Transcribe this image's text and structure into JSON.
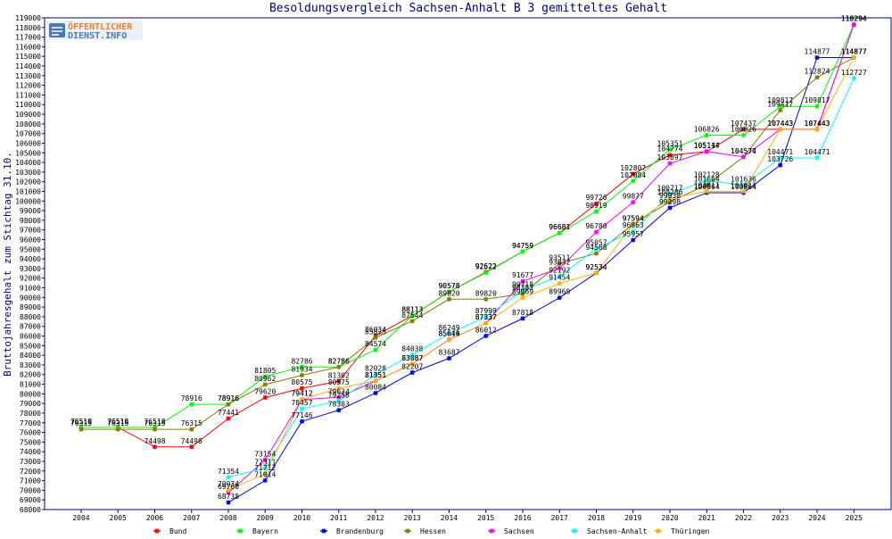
{
  "logo": {
    "line1": "ÖFFENTLICHER",
    "line2": "DIENST.INFO"
  },
  "chart_data": {
    "type": "line",
    "title": "Besoldungsvergleich Sachsen-Anhalt B 3 gemitteltes Gehalt",
    "xlabel": "",
    "ylabel": "Bruttojahresgehalt zum Stichtag 31.10.",
    "categories": [
      "2004",
      "2005",
      "2006",
      "2007",
      "2008",
      "2009",
      "2010",
      "2011",
      "2012",
      "2013",
      "2014",
      "2015",
      "2016",
      "2017",
      "2018",
      "2019",
      "2020",
      "2021",
      "2022",
      "2023",
      "2024",
      "2025"
    ],
    "ylim": [
      68000,
      119000
    ],
    "grid": false,
    "legend_position": "bottom",
    "series": [
      {
        "name": "Bund",
        "color": "#ff0000",
        "values": [
          76518,
          76518,
          74498,
          74498,
          77441,
          79620,
          80575,
          81302,
          86034,
          88113,
          90578,
          92622,
          94759,
          96681,
          99726,
          102807,
          104774,
          105117,
          107437,
          107443,
          107443,
          118294
        ]
      },
      {
        "name": "Bayern",
        "color": "#00ff00",
        "values": [
          76518,
          76518,
          76518,
          78916,
          78916,
          81805,
          82786,
          82786,
          84574,
          88113,
          90578,
          92572,
          94759,
          96681,
          98919,
          102084,
          105351,
          106826,
          106826,
          109817,
          109817,
          118294
        ]
      },
      {
        "name": "Brandenburg",
        "color": "#0000ff",
        "values": [
          null,
          null,
          null,
          null,
          68738,
          71014,
          77146,
          78303,
          80084,
          82207,
          83687,
          86012,
          87818,
          89969,
          92534,
          95957,
          99298,
          100864,
          100864,
          103726,
          114877,
          114877
        ]
      },
      {
        "name": "Hessen",
        "color": "#808000",
        "values": [
          76315,
          76315,
          76315,
          76315,
          78916,
          80962,
          81934,
          82786,
          85825,
          87544,
          89820,
          89820,
          90383,
          93511,
          94568,
          97594,
          99938,
          101664,
          104574,
          109417,
          112824,
          114877
        ]
      },
      {
        "name": "Sachsen",
        "color": "#ff00ff",
        "values": [
          null,
          null,
          null,
          null,
          69760,
          73154,
          79412,
          79634,
          81351,
          83087,
          85640,
          87337,
          91677,
          93032,
          96780,
          99877,
          103897,
          105144,
          104577,
          107443,
          107443,
          118294
        ]
      },
      {
        "name": "Sachsen-Anhalt",
        "color": "#00ffff",
        "values": [
          null,
          null,
          null,
          null,
          71354,
          72311,
          78457,
          79258,
          82028,
          84038,
          86249,
          87999,
          90718,
          92192,
          95057,
          96863,
          100717,
          102128,
          101636,
          104471,
          104471,
          112727
        ]
      },
      {
        "name": "Thüringen",
        "color": "#ffb000",
        "values": [
          null,
          null,
          null,
          null,
          70034,
          71712,
          79412,
          80575,
          81351,
          83087,
          85614,
          87337,
          89969,
          91454,
          92534,
          97594,
          100286,
          101011,
          101011,
          107443,
          107443,
          114877
        ]
      }
    ]
  }
}
